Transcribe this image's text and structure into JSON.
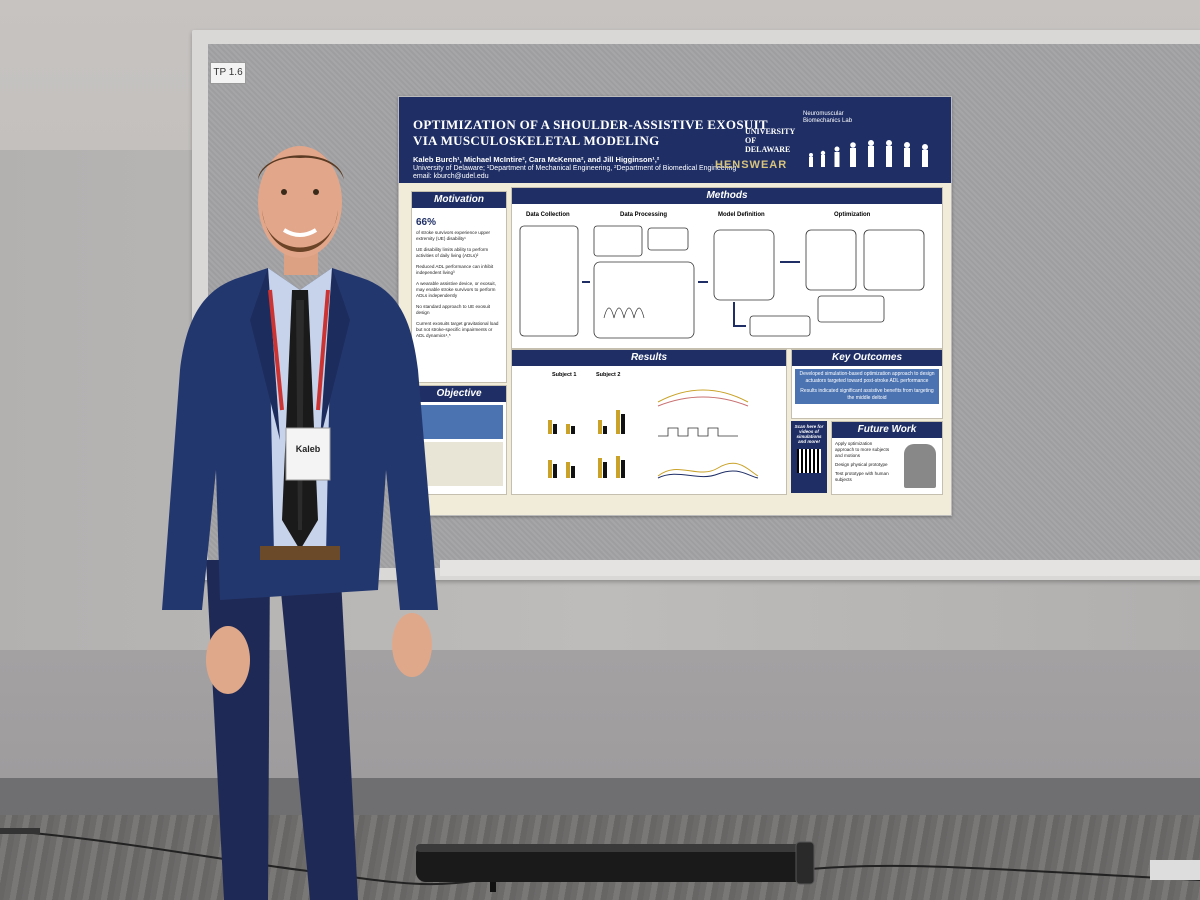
{
  "scene": {
    "board_tag": "TP 1.6"
  },
  "poster": {
    "title_line1": "OPTIMIZATION OF A SHOULDER-ASSISTIVE EXOSUIT",
    "title_line2": "VIA MUSCULOSKELETAL MODELING",
    "authors": "Kaleb Burch¹, Michael McIntire², Cara McKenna², and Jill Higginson¹,²",
    "affiliation": "University of Delaware; ¹Department of Mechanical Engineering, ²Department of Biomedical Engineering",
    "email": "email: kburch@udel.edu",
    "logo_university": "UNIVERSITY OF DELAWARE",
    "logo_lab": "Neuromuscular Biomechanics Lab",
    "logo_hens": "HENSWEAR",
    "sections": {
      "motivation": "Motivation",
      "methods": "Methods",
      "objective": "Objective",
      "results": "Results",
      "key_outcomes": "Key Outcomes",
      "future_work": "Future Work"
    },
    "motivation_stat": "66%",
    "motivation_points": [
      "of stroke survivors experience upper extremity (UE) disability¹",
      "UE disability limits ability to perform activities of daily living (ADLs)²",
      "Reduced ADL performance can inhibit independent living³",
      "A wearable assistive device, or exosuit, may enable stroke survivors to perform ADLs independently",
      "No standard approach to UE exosuit design",
      "Current exosuits target gravitational load but not stroke-specific impairments or ADL dynamics⁴,⁵"
    ],
    "methods_columns": [
      "Data Collection",
      "Data Processing",
      "Model Definition",
      "Optimization"
    ],
    "results_subjects": [
      "Subject 1",
      "Subject 2"
    ],
    "key_outcomes_points": [
      "Developed simulation-based optimization approach to design actuators targeted toward post-stroke ADL performance",
      "Results indicated significant assistive benefits from targeting the middle deltoid"
    ],
    "scan_text": "Scan here for videos of simulations and more!",
    "future_work_points": [
      "Apply optimization approach to more subjects and motions",
      "Design physical prototype",
      "Test prototype with human subjects"
    ]
  },
  "badge": {
    "name": "Kaleb"
  }
}
